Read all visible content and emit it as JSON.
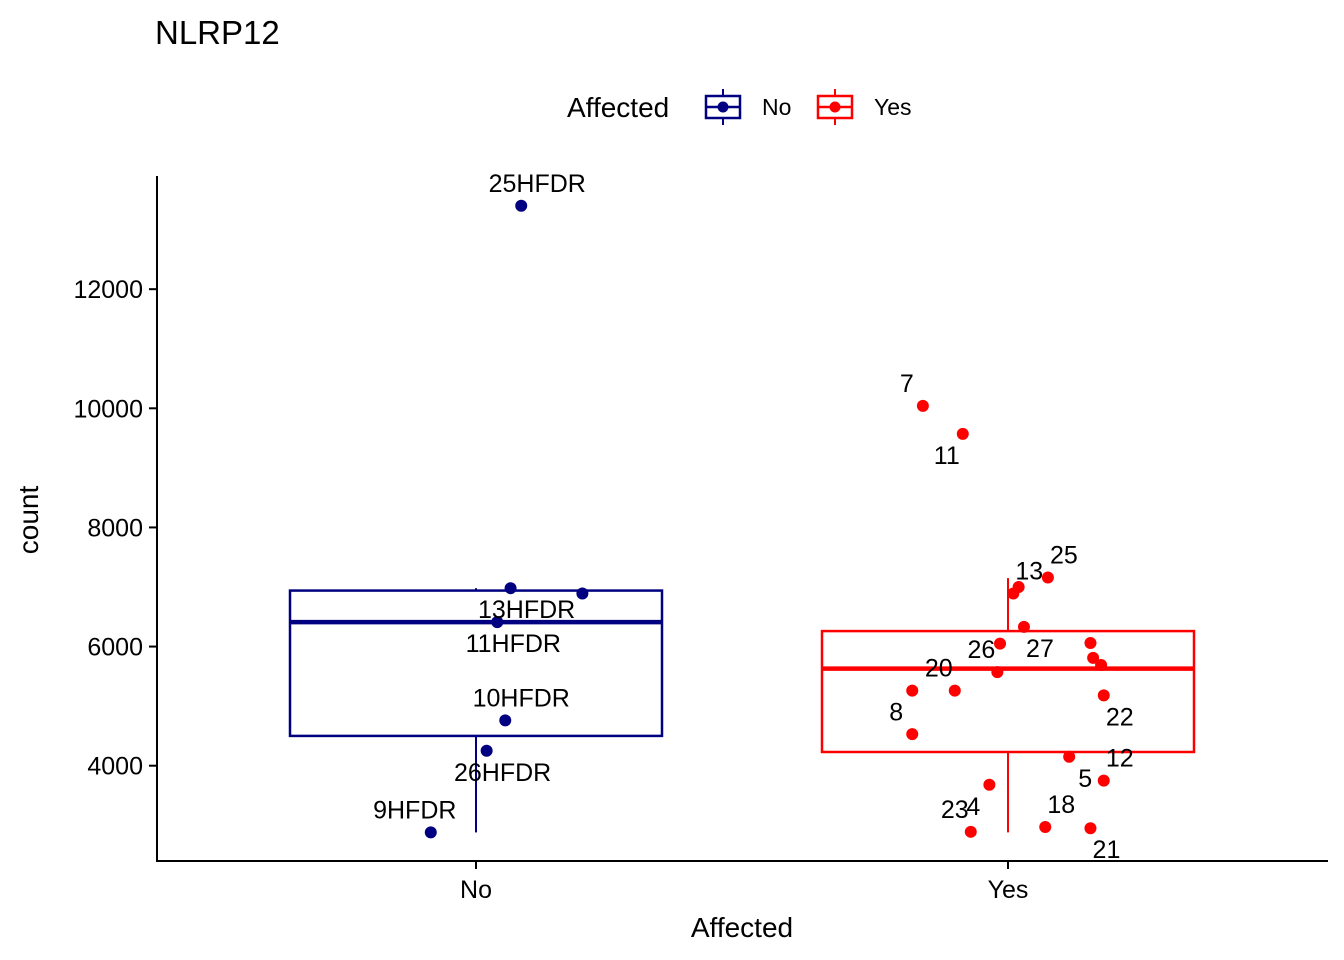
{
  "chart_data": {
    "type": "box-jitter",
    "title": "NLRP12",
    "xlabel": "Affected",
    "ylabel": "count",
    "ylim": [
      2400,
      13900
    ],
    "yticks": [
      4000,
      6000,
      8000,
      10000,
      12000
    ],
    "categories": [
      "No",
      "Yes"
    ],
    "grid": false,
    "legend": {
      "title": "Affected",
      "position": "top",
      "entries": [
        {
          "label": "No",
          "color": "#000080"
        },
        {
          "label": "Yes",
          "color": "#ff0000"
        }
      ]
    },
    "series": [
      {
        "name": "No",
        "color": "#000080",
        "box": {
          "min": 2880,
          "q1": 4500,
          "median": 6410,
          "q3": 6940,
          "max": 6980
        },
        "points": [
          {
            "jitter": 0.085,
            "y": 13400,
            "label": "25HFDR"
          },
          {
            "jitter": 0.065,
            "y": 6980,
            "label": "13HFDR"
          },
          {
            "jitter": 0.2,
            "y": 6890,
            "label": ""
          },
          {
            "jitter": 0.04,
            "y": 6410,
            "label": "11HFDR"
          },
          {
            "jitter": 0.055,
            "y": 4760,
            "label": "10HFDR"
          },
          {
            "jitter": 0.02,
            "y": 4250,
            "label": "26HFDR"
          },
          {
            "jitter": -0.085,
            "y": 2880,
            "label": "9HFDR"
          }
        ]
      },
      {
        "name": "Yes",
        "color": "#ff0000",
        "box": {
          "min": 2880,
          "q1": 4230,
          "median": 5630,
          "q3": 6260,
          "max": 7150
        },
        "points": [
          {
            "jitter": -0.16,
            "y": 10040,
            "label": "7"
          },
          {
            "jitter": -0.085,
            "y": 9570,
            "label": "11"
          },
          {
            "jitter": 0.075,
            "y": 7160,
            "label": "25"
          },
          {
            "jitter": 0.02,
            "y": 7000,
            "label": ""
          },
          {
            "jitter": 0.01,
            "y": 6890,
            "label": "13"
          },
          {
            "jitter": 0.03,
            "y": 6330,
            "label": "27"
          },
          {
            "jitter": 0.155,
            "y": 6060,
            "label": ""
          },
          {
            "jitter": -0.015,
            "y": 6050,
            "label": ""
          },
          {
            "jitter": 0.16,
            "y": 5810,
            "label": ""
          },
          {
            "jitter": 0.175,
            "y": 5690,
            "label": ""
          },
          {
            "jitter": -0.02,
            "y": 5570,
            "label": "26"
          },
          {
            "jitter": -0.18,
            "y": 5260,
            "label": "8"
          },
          {
            "jitter": -0.1,
            "y": 5260,
            "label": "20"
          },
          {
            "jitter": 0.18,
            "y": 5180,
            "label": "22"
          },
          {
            "jitter": -0.18,
            "y": 4530,
            "label": ""
          },
          {
            "jitter": 0.115,
            "y": 4150,
            "label": "5"
          },
          {
            "jitter": 0.18,
            "y": 3750,
            "label": "12"
          },
          {
            "jitter": -0.035,
            "y": 3680,
            "label": "4"
          },
          {
            "jitter": 0.07,
            "y": 2970,
            "label": "18"
          },
          {
            "jitter": 0.155,
            "y": 2950,
            "label": "21"
          },
          {
            "jitter": -0.07,
            "y": 2890,
            "label": "23"
          }
        ]
      }
    ]
  }
}
